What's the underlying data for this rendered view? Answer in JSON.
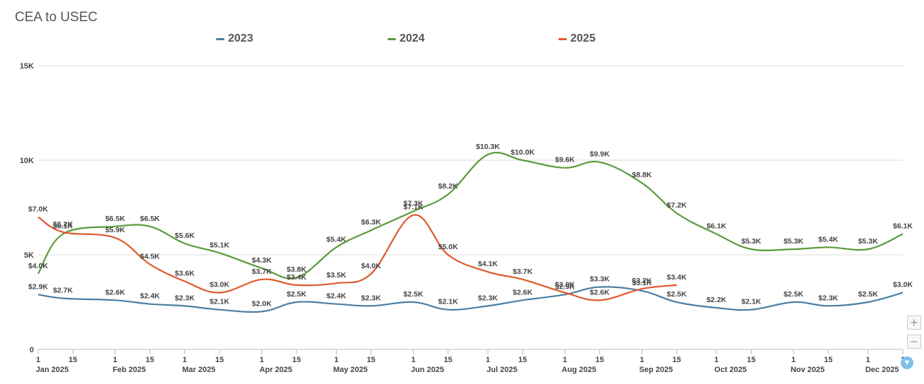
{
  "chart_data": {
    "type": "line",
    "title": "CEA to USEC",
    "xlabel": "",
    "ylabel": "",
    "ylim": [
      0,
      15000
    ],
    "y_ticks": [
      {
        "value": 0,
        "label": "0"
      },
      {
        "value": 5000,
        "label": "5K"
      },
      {
        "value": 10000,
        "label": "10K"
      },
      {
        "value": 15000,
        "label": "15K"
      }
    ],
    "x_ticks": [
      {
        "day": 1,
        "label": "1"
      },
      {
        "day": 15,
        "label": "15"
      },
      {
        "day": 32,
        "label": "1"
      },
      {
        "day": 46,
        "label": "15"
      },
      {
        "day": 60,
        "label": "1"
      },
      {
        "day": 74,
        "label": "15"
      },
      {
        "day": 91,
        "label": "1"
      },
      {
        "day": 105,
        "label": "15"
      },
      {
        "day": 121,
        "label": "1"
      },
      {
        "day": 135,
        "label": "15"
      },
      {
        "day": 152,
        "label": "1"
      },
      {
        "day": 166,
        "label": "15"
      },
      {
        "day": 182,
        "label": "1"
      },
      {
        "day": 196,
        "label": "15"
      },
      {
        "day": 213,
        "label": "1"
      },
      {
        "day": 227,
        "label": "15"
      },
      {
        "day": 244,
        "label": "1"
      },
      {
        "day": 258,
        "label": "15"
      },
      {
        "day": 274,
        "label": "1"
      },
      {
        "day": 288,
        "label": "15"
      },
      {
        "day": 305,
        "label": "1"
      },
      {
        "day": 319,
        "label": "15"
      },
      {
        "day": 335,
        "label": "1"
      },
      {
        "day": 349,
        "label": "1"
      }
    ],
    "month_labels": [
      {
        "day": 1,
        "label": "Jan 2025"
      },
      {
        "day": 32,
        "label": "Feb 2025"
      },
      {
        "day": 60,
        "label": "Mar 2025"
      },
      {
        "day": 91,
        "label": "Apr 2025"
      },
      {
        "day": 121,
        "label": "May 2025"
      },
      {
        "day": 152,
        "label": "Jun 2025"
      },
      {
        "day": 182,
        "label": "Jul 2025"
      },
      {
        "day": 213,
        "label": "Aug 2025"
      },
      {
        "day": 244,
        "label": "Sep 2025"
      },
      {
        "day": 274,
        "label": "Oct 2025"
      },
      {
        "day": 305,
        "label": "Nov 2025"
      },
      {
        "day": 335,
        "label": "Dec 2025"
      }
    ],
    "legend_position": "top",
    "grid": true,
    "series": [
      {
        "name": "2023",
        "color": "#4a7fa5",
        "points": [
          {
            "day": 1,
            "value": 2900,
            "label": "$2.9K"
          },
          {
            "day": 11,
            "value": 2700,
            "label": "$2.7K"
          },
          {
            "day": 32,
            "value": 2600,
            "label": "$2.6K"
          },
          {
            "day": 46,
            "value": 2400,
            "label": "$2.4K"
          },
          {
            "day": 60,
            "value": 2300,
            "label": "$2.3K"
          },
          {
            "day": 74,
            "value": 2100,
            "label": "$2.1K"
          },
          {
            "day": 91,
            "value": 2000,
            "label": "$2.0K"
          },
          {
            "day": 105,
            "value": 2500,
            "label": "$2.5K"
          },
          {
            "day": 121,
            "value": 2400,
            "label": "$2.4K"
          },
          {
            "day": 135,
            "value": 2300,
            "label": "$2.3K"
          },
          {
            "day": 152,
            "value": 2500,
            "label": "$2.5K"
          },
          {
            "day": 166,
            "value": 2100,
            "label": "$2.1K"
          },
          {
            "day": 182,
            "value": 2300,
            "label": "$2.3K"
          },
          {
            "day": 196,
            "value": 2600,
            "label": "$2.6K"
          },
          {
            "day": 213,
            "value": 2900,
            "label": "$2.9K"
          },
          {
            "day": 227,
            "value": 3300,
            "label": "$3.3K"
          },
          {
            "day": 244,
            "value": 3100,
            "label": "$3.1K"
          },
          {
            "day": 258,
            "value": 2500,
            "label": "$2.5K"
          },
          {
            "day": 274,
            "value": 2200,
            "label": "$2.2K"
          },
          {
            "day": 288,
            "value": 2100,
            "label": "$2.1K"
          },
          {
            "day": 305,
            "value": 2500,
            "label": "$2.5K"
          },
          {
            "day": 319,
            "value": 2300,
            "label": "$2.3K"
          },
          {
            "day": 335,
            "value": 2500,
            "label": "$2.5K"
          },
          {
            "day": 349,
            "value": 3000,
            "label": "$3.0K"
          }
        ]
      },
      {
        "name": "2024",
        "color": "#5a9a3a",
        "points": [
          {
            "day": 1,
            "value": 4000,
            "label": "$4.0K"
          },
          {
            "day": 11,
            "value": 6100,
            "label": "$6.1K"
          },
          {
            "day": 32,
            "value": 6500,
            "label": "$6.5K"
          },
          {
            "day": 46,
            "value": 6500,
            "label": "$6.5K"
          },
          {
            "day": 60,
            "value": 5600,
            "label": "$5.6K"
          },
          {
            "day": 74,
            "value": 5100,
            "label": "$5.1K"
          },
          {
            "day": 91,
            "value": 4300,
            "label": "$4.3K"
          },
          {
            "day": 105,
            "value": 3800,
            "label": "$3.8K"
          },
          {
            "day": 121,
            "value": 5400,
            "label": "$5.4K"
          },
          {
            "day": 135,
            "value": 6300,
            "label": "$6.3K"
          },
          {
            "day": 152,
            "value": 7300,
            "label": "$7.3K"
          },
          {
            "day": 166,
            "value": 8200,
            "label": "$8.2K"
          },
          {
            "day": 182,
            "value": 10300,
            "label": "$10.3K"
          },
          {
            "day": 196,
            "value": 10000,
            "label": "$10.0K"
          },
          {
            "day": 213,
            "value": 9600,
            "label": "$9.6K"
          },
          {
            "day": 227,
            "value": 9900,
            "label": "$9.9K"
          },
          {
            "day": 244,
            "value": 8800,
            "label": "$8.8K"
          },
          {
            "day": 258,
            "value": 7200,
            "label": "$7.2K"
          },
          {
            "day": 274,
            "value": 6100,
            "label": "$6.1K"
          },
          {
            "day": 288,
            "value": 5300,
            "label": "$5.3K"
          },
          {
            "day": 305,
            "value": 5300,
            "label": "$5.3K"
          },
          {
            "day": 319,
            "value": 5400,
            "label": "$5.4K"
          },
          {
            "day": 335,
            "value": 5300,
            "label": "$5.3K"
          },
          {
            "day": 349,
            "value": 6100,
            "label": "$6.1K"
          }
        ]
      },
      {
        "name": "2025",
        "color": "#e0582a",
        "points": [
          {
            "day": 1,
            "value": 7000,
            "label": "$7.0K"
          },
          {
            "day": 11,
            "value": 6200,
            "label": "$6.2K"
          },
          {
            "day": 32,
            "value": 5900,
            "label": "$5.9K"
          },
          {
            "day": 46,
            "value": 4500,
            "label": "$4.5K"
          },
          {
            "day": 60,
            "value": 3600,
            "label": "$3.6K"
          },
          {
            "day": 74,
            "value": 3000,
            "label": "$3.0K"
          },
          {
            "day": 91,
            "value": 3700,
            "label": "$3.7K"
          },
          {
            "day": 105,
            "value": 3400,
            "label": "$3.4K"
          },
          {
            "day": 121,
            "value": 3500,
            "label": "$3.5K"
          },
          {
            "day": 135,
            "value": 4000,
            "label": "$4.0K"
          },
          {
            "day": 152,
            "value": 7100,
            "label": "$7.1K"
          },
          {
            "day": 166,
            "value": 5000,
            "label": "$5.0K"
          },
          {
            "day": 182,
            "value": 4100,
            "label": "$4.1K"
          },
          {
            "day": 196,
            "value": 3700,
            "label": "$3.7K"
          },
          {
            "day": 213,
            "value": 3000,
            "label": "$3.0K"
          },
          {
            "day": 227,
            "value": 2600,
            "label": "$2.6K"
          },
          {
            "day": 244,
            "value": 3200,
            "label": "$3.2K"
          },
          {
            "day": 258,
            "value": 3400,
            "label": "$3.4K"
          }
        ]
      }
    ]
  },
  "controls": {
    "zoom_in": "+",
    "zoom_out": "−"
  }
}
